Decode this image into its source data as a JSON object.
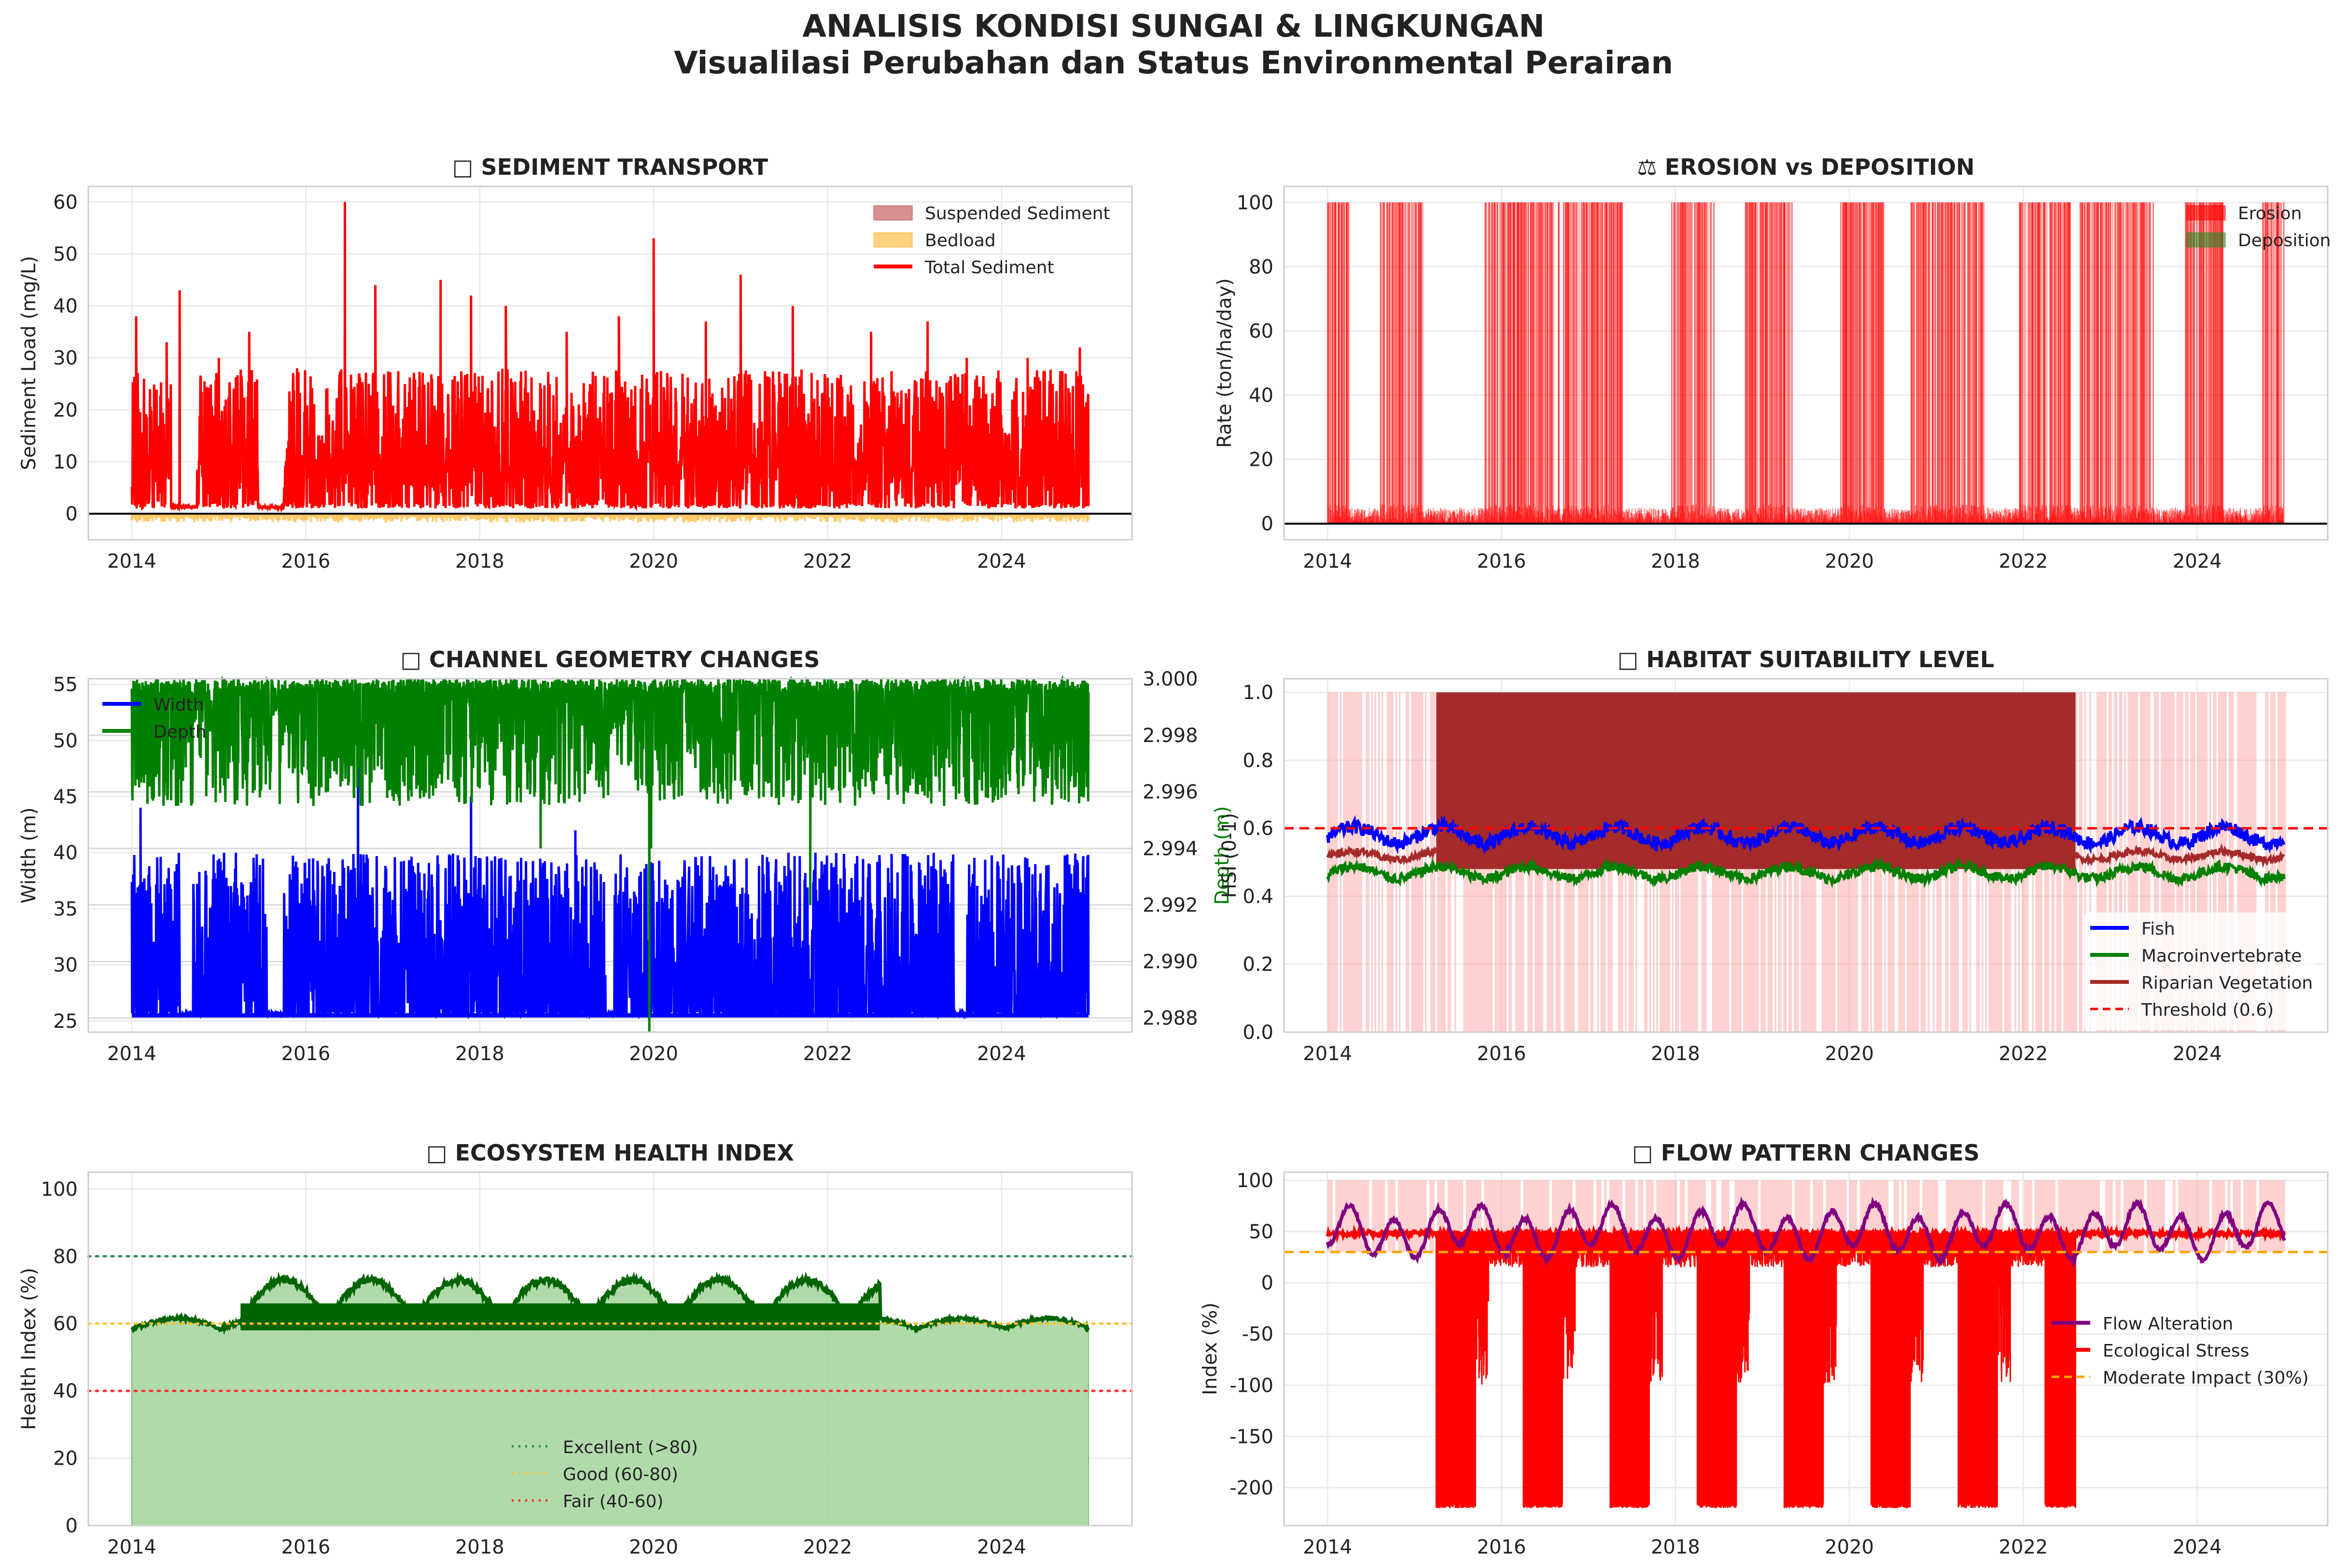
{
  "figure": {
    "title_line1": "ANALISIS KONDISI SUNGAI & LINGKUNGAN",
    "title_line2": "Visualilasi Perubahan dan Status Environmental Perairan"
  },
  "chart_data": [
    {
      "id": "sediment",
      "type": "area",
      "title": "□ SEDIMENT TRANSPORT",
      "xlabel": "",
      "ylabel": "Sediment Load (mg/L)",
      "xlim": [
        2013.5,
        2025.5
      ],
      "ylim": [
        -5,
        63
      ],
      "xticks": [
        2014,
        2016,
        2018,
        2020,
        2022,
        2024
      ],
      "yticks": [
        0,
        10,
        20,
        30,
        40,
        50,
        60
      ],
      "legend_position": "upper-right",
      "series": [
        {
          "name": "Suspended Sediment",
          "kind": "fill",
          "color": "#b22222"
        },
        {
          "name": "Bedload",
          "kind": "fill",
          "color": "#ffa500"
        },
        {
          "name": "Total Sediment",
          "kind": "line",
          "color": "#ff0000",
          "baseline": 1,
          "peak_max": 60,
          "peaks": [
            [
              2014.05,
              38
            ],
            [
              2014.4,
              33
            ],
            [
              2014.55,
              43
            ],
            [
              2015.0,
              30
            ],
            [
              2015.35,
              35
            ],
            [
              2015.9,
              28
            ],
            [
              2016.45,
              60
            ],
            [
              2016.8,
              44
            ],
            [
              2017.55,
              45
            ],
            [
              2017.9,
              42
            ],
            [
              2018.3,
              40
            ],
            [
              2019.0,
              35
            ],
            [
              2019.6,
              38
            ],
            [
              2020.0,
              53
            ],
            [
              2020.6,
              37
            ],
            [
              2021.0,
              46
            ],
            [
              2021.6,
              40
            ],
            [
              2022.5,
              35
            ],
            [
              2023.15,
              37
            ],
            [
              2023.6,
              30
            ],
            [
              2024.3,
              30
            ],
            [
              2024.9,
              32
            ]
          ],
          "active_periods": [
            [
              2014.0,
              2014.45
            ],
            [
              2014.75,
              2015.45
            ],
            [
              2015.75,
              2025.0
            ]
          ]
        }
      ]
    },
    {
      "id": "erosion",
      "type": "area",
      "title": "⚖ EROSION vs DEPOSITION",
      "xlabel": "",
      "ylabel": "Rate (ton/ha/day)",
      "xlim": [
        2013.5,
        2025.5
      ],
      "ylim": [
        -5,
        105
      ],
      "xticks": [
        2014,
        2016,
        2018,
        2020,
        2022,
        2024
      ],
      "yticks": [
        0,
        20,
        40,
        60,
        80,
        100
      ],
      "legend_position": "upper-right",
      "series": [
        {
          "name": "Erosion",
          "kind": "fill",
          "color": "#ff0000",
          "max": 100,
          "active_periods": [
            [
              2014.0,
              2014.25
            ],
            [
              2014.6,
              2015.1
            ],
            [
              2015.8,
              2016.6
            ],
            [
              2016.65,
              2017.4
            ],
            [
              2017.95,
              2018.45
            ],
            [
              2018.8,
              2019.35
            ],
            [
              2019.9,
              2020.4
            ],
            [
              2020.7,
              2021.55
            ],
            [
              2021.95,
              2022.55
            ],
            [
              2022.65,
              2023.5
            ],
            [
              2023.85,
              2024.3
            ],
            [
              2024.75,
              2025.0
            ]
          ]
        },
        {
          "name": "Deposition",
          "kind": "fill",
          "color": "#228b22"
        }
      ]
    },
    {
      "id": "channel",
      "type": "line",
      "title": "□ CHANNEL GEOMETRY CHANGES",
      "xlabel": "",
      "ylabel": "Width (m)",
      "ylabel_right": "Depth (m)",
      "xlim": [
        2013.5,
        2025.5
      ],
      "ylim": [
        24,
        55.5
      ],
      "ylim_right": [
        2.9875,
        3.0
      ],
      "xticks": [
        2014,
        2016,
        2018,
        2020,
        2022,
        2024
      ],
      "yticks": [
        25,
        30,
        35,
        40,
        45,
        50,
        55
      ],
      "yticks_right": [
        "2.988",
        "2.990",
        "2.992",
        "2.994",
        "2.996",
        "2.998",
        "3.000"
      ],
      "yticks_right_values": [
        2.988,
        2.99,
        2.992,
        2.994,
        2.996,
        2.998,
        3.0
      ],
      "legend_position": "upper-left",
      "series": [
        {
          "name": "Width",
          "color": "#0000ff",
          "baseline": 25.5,
          "max": 51
        },
        {
          "name": "Depth",
          "color": "#008000",
          "baseline": 3.0,
          "min": 2.9875
        }
      ],
      "legend_labels": [
        "Width",
        "Depth"
      ]
    },
    {
      "id": "habitat",
      "type": "line",
      "title": "□ HABITAT SUITABILITY LEVEL",
      "xlabel": "",
      "ylabel": "HSI (0-1)",
      "xlim": [
        2013.5,
        2025.5
      ],
      "ylim": [
        0,
        1.04
      ],
      "xticks": [
        2014,
        2016,
        2018,
        2020,
        2022,
        2024
      ],
      "yticks": [
        "0.0",
        "0.2",
        "0.4",
        "0.6",
        "0.8",
        "1.0"
      ],
      "ytick_values": [
        0,
        0.2,
        0.4,
        0.6,
        0.8,
        1.0
      ],
      "legend_position": "lower-right",
      "threshold": 0.6,
      "series": [
        {
          "name": "Fish",
          "color": "#0000ff",
          "mean": 0.58
        },
        {
          "name": "Macroinvertebrate",
          "color": "#008000",
          "mean": 0.47
        },
        {
          "name": "Riparian Vegetation",
          "color": "#a52a2a",
          "mean": 0.52,
          "dense_band": [
            2015.25,
            2022.6
          ]
        },
        {
          "name": "Threshold (0.6)",
          "color": "#ff0000",
          "style": "dashed",
          "value": 0.6
        }
      ]
    },
    {
      "id": "ecosystem",
      "type": "area",
      "title": "□ ECOSYSTEM HEALTH INDEX",
      "xlabel": "",
      "ylabel": "Health Index (%)",
      "xlim": [
        2013.5,
        2025.5
      ],
      "ylim": [
        0,
        105
      ],
      "xticks": [
        2014,
        2016,
        2018,
        2020,
        2022,
        2024
      ],
      "yticks": [
        0,
        20,
        40,
        60,
        80,
        100
      ],
      "legend_position": "lower-center",
      "series": [
        {
          "name": "Health Index",
          "color": "#006400",
          "fill": "#a3d39c",
          "min": 57,
          "max": 74,
          "elevated_period": [
            2015.25,
            2022.6
          ]
        },
        {
          "name": "Excellent (>80)",
          "color": "#2e8b57",
          "style": "dotted",
          "value": 80
        },
        {
          "name": "Good (60-80)",
          "color": "#ffc125",
          "style": "dotted",
          "value": 60
        },
        {
          "name": "Fair (40-60)",
          "color": "#ff3030",
          "style": "dotted",
          "value": 40
        }
      ]
    },
    {
      "id": "flow",
      "type": "line",
      "title": "□ FLOW PATTERN CHANGES",
      "xlabel": "",
      "ylabel": "Index (%)",
      "xlim": [
        2013.5,
        2025.5
      ],
      "ylim": [
        -237,
        108
      ],
      "xticks": [
        2014,
        2016,
        2018,
        2020,
        2022,
        2024
      ],
      "yticks": [
        -200,
        -150,
        -100,
        -50,
        0,
        50,
        100
      ],
      "legend_position": "center-right",
      "series": [
        {
          "name": "Flow Alteration",
          "color": "#800080",
          "min": 22,
          "max": 80
        },
        {
          "name": "Ecological Stress",
          "color": "#ff0000",
          "baseline": 48,
          "min": -220,
          "dense_band": [
            2015.25,
            2022.6
          ]
        },
        {
          "name": "Moderate Impact (30%)",
          "color": "#ffa500",
          "style": "dashed",
          "value": 30
        }
      ]
    }
  ]
}
